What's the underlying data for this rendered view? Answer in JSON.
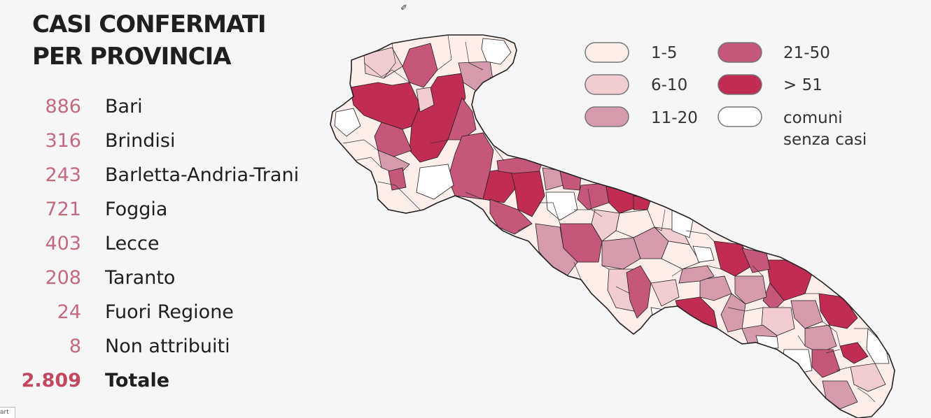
{
  "header": {
    "title_line1": "CASI CONFERMATI",
    "title_line2": "PER PROVINCIA"
  },
  "provinces": [
    {
      "value": "886",
      "name": "Bari"
    },
    {
      "value": "316",
      "name": "Brindisi"
    },
    {
      "value": "243",
      "name": "Barletta-Andria-Trani"
    },
    {
      "value": "721",
      "name": "Foggia"
    },
    {
      "value": "403",
      "name": "Lecce"
    },
    {
      "value": "208",
      "name": "Taranto"
    },
    {
      "value": "24",
      "name": "Fuori Regione"
    },
    {
      "value": "8",
      "name": "Non attribuiti"
    }
  ],
  "total": {
    "value": "2.809",
    "name": "Totale"
  },
  "legend": [
    {
      "label": "1-5",
      "color": "#fdeeea"
    },
    {
      "label": "6-10",
      "color": "#f1cdd2"
    },
    {
      "label": "11-20",
      "color": "#d59aab"
    },
    {
      "label": "21-50",
      "color": "#c5587a"
    },
    {
      "label": "> 51",
      "color": "#c02c52"
    },
    {
      "label_line1": "comuni",
      "label_line2": "senza casi",
      "color": "#ffffff"
    }
  ],
  "corner_tab": "art"
}
